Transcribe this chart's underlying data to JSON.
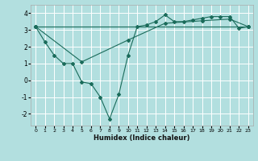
{
  "background_color": "#b2dfdf",
  "grid_color": "#ffffff",
  "line_color": "#1a6b5a",
  "xlabel": "Humidex (Indice chaleur)",
  "xlim": [
    -0.5,
    23.5
  ],
  "ylim": [
    -2.7,
    4.5
  ],
  "yticks": [
    -2,
    -1,
    0,
    1,
    2,
    3,
    4
  ],
  "xticks": [
    0,
    1,
    2,
    3,
    4,
    5,
    6,
    7,
    8,
    9,
    10,
    11,
    12,
    13,
    14,
    15,
    16,
    17,
    18,
    19,
    20,
    21,
    22,
    23
  ],
  "line1_x": [
    0,
    1,
    2,
    3,
    4,
    5,
    6,
    7,
    8,
    9,
    10,
    11,
    12,
    13,
    14,
    15,
    16,
    17,
    18,
    19,
    20,
    21,
    22,
    23
  ],
  "line1_y": [
    3.2,
    2.3,
    1.5,
    1.0,
    1.0,
    -0.1,
    -0.2,
    -1.0,
    -2.3,
    -0.85,
    1.5,
    3.2,
    3.3,
    3.5,
    3.9,
    3.5,
    3.5,
    3.6,
    3.7,
    3.8,
    3.8,
    3.8,
    3.1,
    3.2
  ],
  "line2_x": [
    0,
    23
  ],
  "line2_y": [
    3.2,
    3.2
  ],
  "line3_x": [
    0,
    5,
    10,
    14,
    18,
    21,
    23
  ],
  "line3_y": [
    3.2,
    1.1,
    2.4,
    3.4,
    3.55,
    3.65,
    3.2
  ]
}
